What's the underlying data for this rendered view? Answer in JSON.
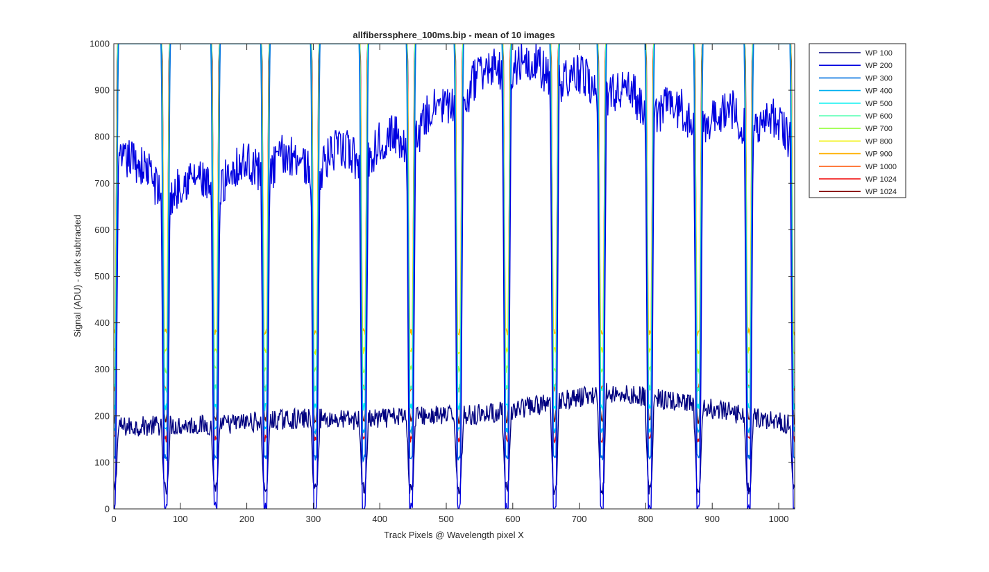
{
  "chart_data": {
    "type": "line",
    "title": "allfiberssphere_100ms.bip - mean of 10 images",
    "xlabel": "Track Pixels @ Wavelength pixel X",
    "ylabel": "Signal (ADU) - dark subtracted",
    "xlim": [
      0,
      1024
    ],
    "ylim": [
      0,
      1000
    ],
    "xticks": [
      0,
      100,
      200,
      300,
      400,
      500,
      600,
      700,
      800,
      900,
      1000
    ],
    "yticks": [
      0,
      100,
      200,
      300,
      400,
      500,
      600,
      700,
      800,
      900,
      1000
    ],
    "grid": false,
    "legend_position": "outside-top-right",
    "fiber_centers": [
      0,
      78,
      153,
      228,
      303,
      376,
      447,
      519,
      591,
      663,
      734,
      806,
      879,
      955,
      1024
    ],
    "series": [
      {
        "name": "WP 100",
        "color": "#000080",
        "baseline": [
          175,
          180,
          180,
          190,
          195,
          190,
          200,
          200,
          210,
          230,
          250,
          240,
          220,
          200,
          180
        ],
        "dip_min": 45
      },
      {
        "name": "WP 200",
        "color": "#0000e0",
        "baseline": [
          780,
          700,
          720,
          760,
          760,
          780,
          820,
          900,
          980,
          950,
          920,
          880,
          850,
          860,
          820
        ],
        "dip_min": 0
      },
      {
        "name": "WP 300",
        "color": "#0070e0",
        "baseline": [
          1000,
          1000,
          1000,
          1000,
          1000,
          1000,
          1000,
          1000,
          1000,
          1000,
          1000,
          1000,
          1000,
          1000,
          1000
        ],
        "dip_min": 110
      },
      {
        "name": "WP 400",
        "color": "#00b0f0",
        "baseline": [
          1000,
          1000,
          1000,
          1000,
          1000,
          1000,
          1000,
          1000,
          1000,
          1000,
          1000,
          1000,
          1000,
          1000,
          1000
        ],
        "dip_min": 170
      },
      {
        "name": "WP 500",
        "color": "#00f0f0",
        "baseline": [
          1000,
          1000,
          1000,
          1000,
          1000,
          1000,
          1000,
          1000,
          1000,
          1000,
          1000,
          1000,
          1000,
          1000,
          1000
        ],
        "dip_min": 220
      },
      {
        "name": "WP 600",
        "color": "#50ffb0",
        "baseline": [
          1000,
          1000,
          1000,
          1000,
          1000,
          1000,
          1000,
          1000,
          1000,
          1000,
          1000,
          1000,
          1000,
          1000,
          1000
        ],
        "dip_min": 260
      },
      {
        "name": "WP 700",
        "color": "#a0ff50",
        "baseline": [
          1000,
          1000,
          1000,
          1000,
          1000,
          1000,
          1000,
          1000,
          1000,
          1000,
          1000,
          1000,
          1000,
          1000,
          1000
        ],
        "dip_min": 300
      },
      {
        "name": "WP 800",
        "color": "#f0f000",
        "baseline": [
          1000,
          1000,
          1000,
          1000,
          1000,
          1000,
          1000,
          1000,
          1000,
          1000,
          1000,
          1000,
          1000,
          1000,
          1000
        ],
        "dip_min": 340
      },
      {
        "name": "WP 900",
        "color": "#ffb000",
        "baseline": [
          1000,
          1000,
          1000,
          1000,
          1000,
          1000,
          1000,
          1000,
          1000,
          1000,
          1000,
          1000,
          1000,
          1000,
          1000
        ],
        "dip_min": 380
      },
      {
        "name": "WP 1000",
        "color": "#ff5000",
        "baseline": [
          1000,
          1000,
          1000,
          1000,
          1000,
          1000,
          1000,
          1000,
          1000,
          1000,
          1000,
          1000,
          1000,
          1000,
          1000
        ],
        "dip_min": 260
      },
      {
        "name": "WP 1024",
        "color": "#f00000",
        "baseline": [
          1000,
          1000,
          1000,
          1000,
          1000,
          1000,
          1000,
          1000,
          1000,
          1000,
          1000,
          1000,
          1000,
          1000,
          1000
        ],
        "dip_min": 150
      },
      {
        "name": "WP 1024",
        "color": "#800000",
        "baseline": [
          1000,
          1000,
          1000,
          1000,
          1000,
          1000,
          1000,
          1000,
          1000,
          1000,
          1000,
          1000,
          1000,
          1000,
          1000
        ],
        "dip_min": 190
      }
    ]
  }
}
